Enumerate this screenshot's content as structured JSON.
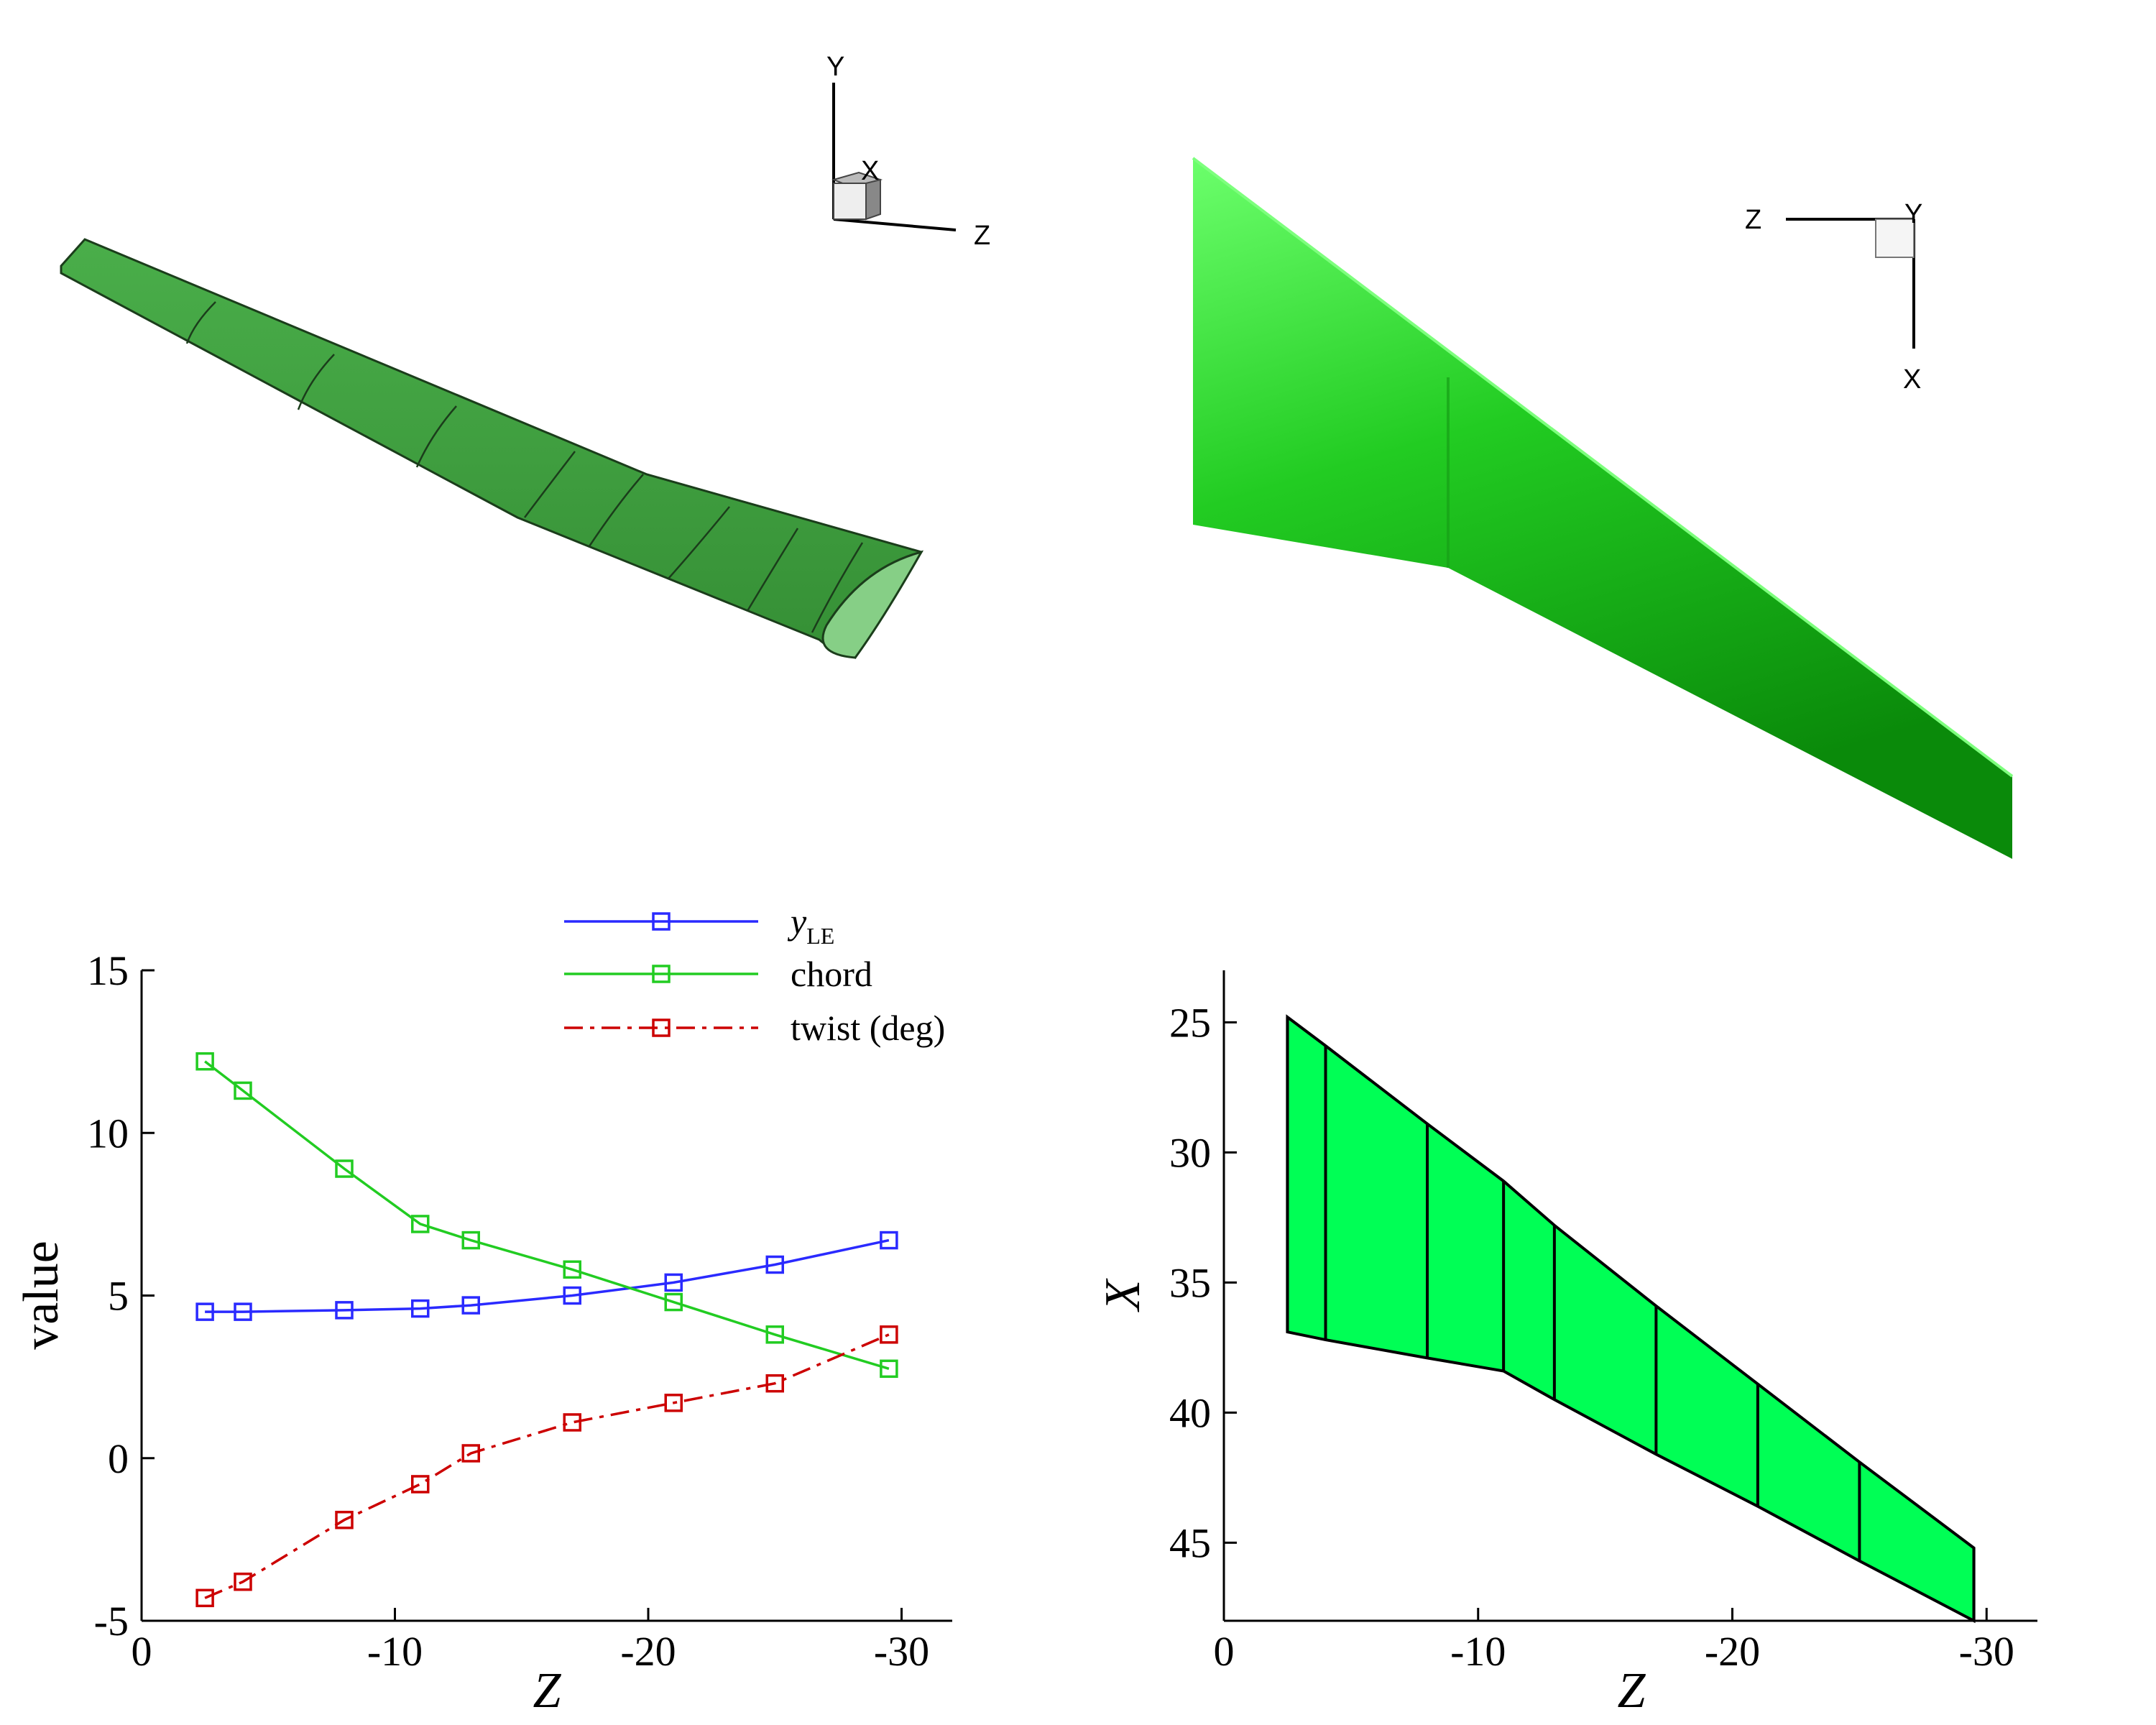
{
  "views": {
    "perspective": {
      "triad": {
        "x": "X",
        "y": "Y",
        "z": "Z"
      }
    },
    "top": {
      "triad": {
        "z": "Z",
        "y": "Y",
        "x": "X"
      }
    }
  },
  "colors": {
    "blade_3d": "#3d9e3d",
    "wing_top": "#1ec21e",
    "planform_fill": "#00ff55",
    "y_le": "#2a2aff",
    "chord": "#22cc22",
    "twist": "#cc0000"
  },
  "chart_data": [
    {
      "type": "line",
      "xlabel": "Z",
      "ylabel": "value",
      "xlim": [
        0,
        -32
      ],
      "ylim": [
        -5,
        15
      ],
      "xticks": [
        0,
        -10,
        -20,
        -30
      ],
      "xtick_labels": [
        "0",
        "-10",
        "-20",
        "-30"
      ],
      "yticks": [
        -5,
        0,
        5,
        10,
        15
      ],
      "ytick_labels": [
        "-5",
        "0",
        "5",
        "10",
        "15"
      ],
      "legend_position": "top-right",
      "x": [
        -2.5,
        -4,
        -8,
        -11,
        -13,
        -17,
        -21,
        -25,
        -29.5
      ],
      "series": [
        {
          "name": "y",
          "name_subscript": "LE",
          "color": "#2a2aff",
          "dash": "solid",
          "values": [
            4.5,
            4.5,
            4.55,
            4.6,
            4.7,
            5.0,
            5.4,
            5.95,
            6.7
          ]
        },
        {
          "name": "chord",
          "color": "#22cc22",
          "dash": "solid",
          "values": [
            12.2,
            11.3,
            8.9,
            7.2,
            6.7,
            5.8,
            4.8,
            3.8,
            2.75
          ]
        },
        {
          "name": "twist (deg)",
          "color": "#cc0000",
          "dash": "dashdot",
          "values": [
            -4.3,
            -3.8,
            -1.9,
            -0.8,
            0.15,
            1.1,
            1.7,
            2.3,
            3.8
          ]
        }
      ]
    },
    {
      "type": "area",
      "xlabel": "Z",
      "ylabel": "X",
      "xlim": [
        0,
        -32
      ],
      "ylim": [
        48,
        23
      ],
      "xticks": [
        0,
        -10,
        -20,
        -30
      ],
      "xtick_labels": [
        "0",
        "-10",
        "-20",
        "-30"
      ],
      "yticks": [
        25,
        30,
        35,
        40,
        45
      ],
      "ytick_labels": [
        "25",
        "30",
        "35",
        "40",
        "45"
      ],
      "fill_color": "#00ff55",
      "sections": [
        {
          "z": -2.5,
          "x_le": 24.8,
          "x_te": 36.9
        },
        {
          "z": -4,
          "x_le": 25.9,
          "x_te": 37.2
        },
        {
          "z": -8,
          "x_le": 28.9,
          "x_te": 37.9
        },
        {
          "z": -11,
          "x_le": 31.1,
          "x_te": 38.4
        },
        {
          "z": -13,
          "x_le": 32.8,
          "x_te": 39.5
        },
        {
          "z": -17,
          "x_le": 35.9,
          "x_te": 41.6
        },
        {
          "z": -21,
          "x_le": 38.9,
          "x_te": 43.6
        },
        {
          "z": -25,
          "x_le": 41.9,
          "x_te": 45.7
        },
        {
          "z": -29.5,
          "x_le": 45.2,
          "x_te": 48.0
        }
      ]
    }
  ]
}
